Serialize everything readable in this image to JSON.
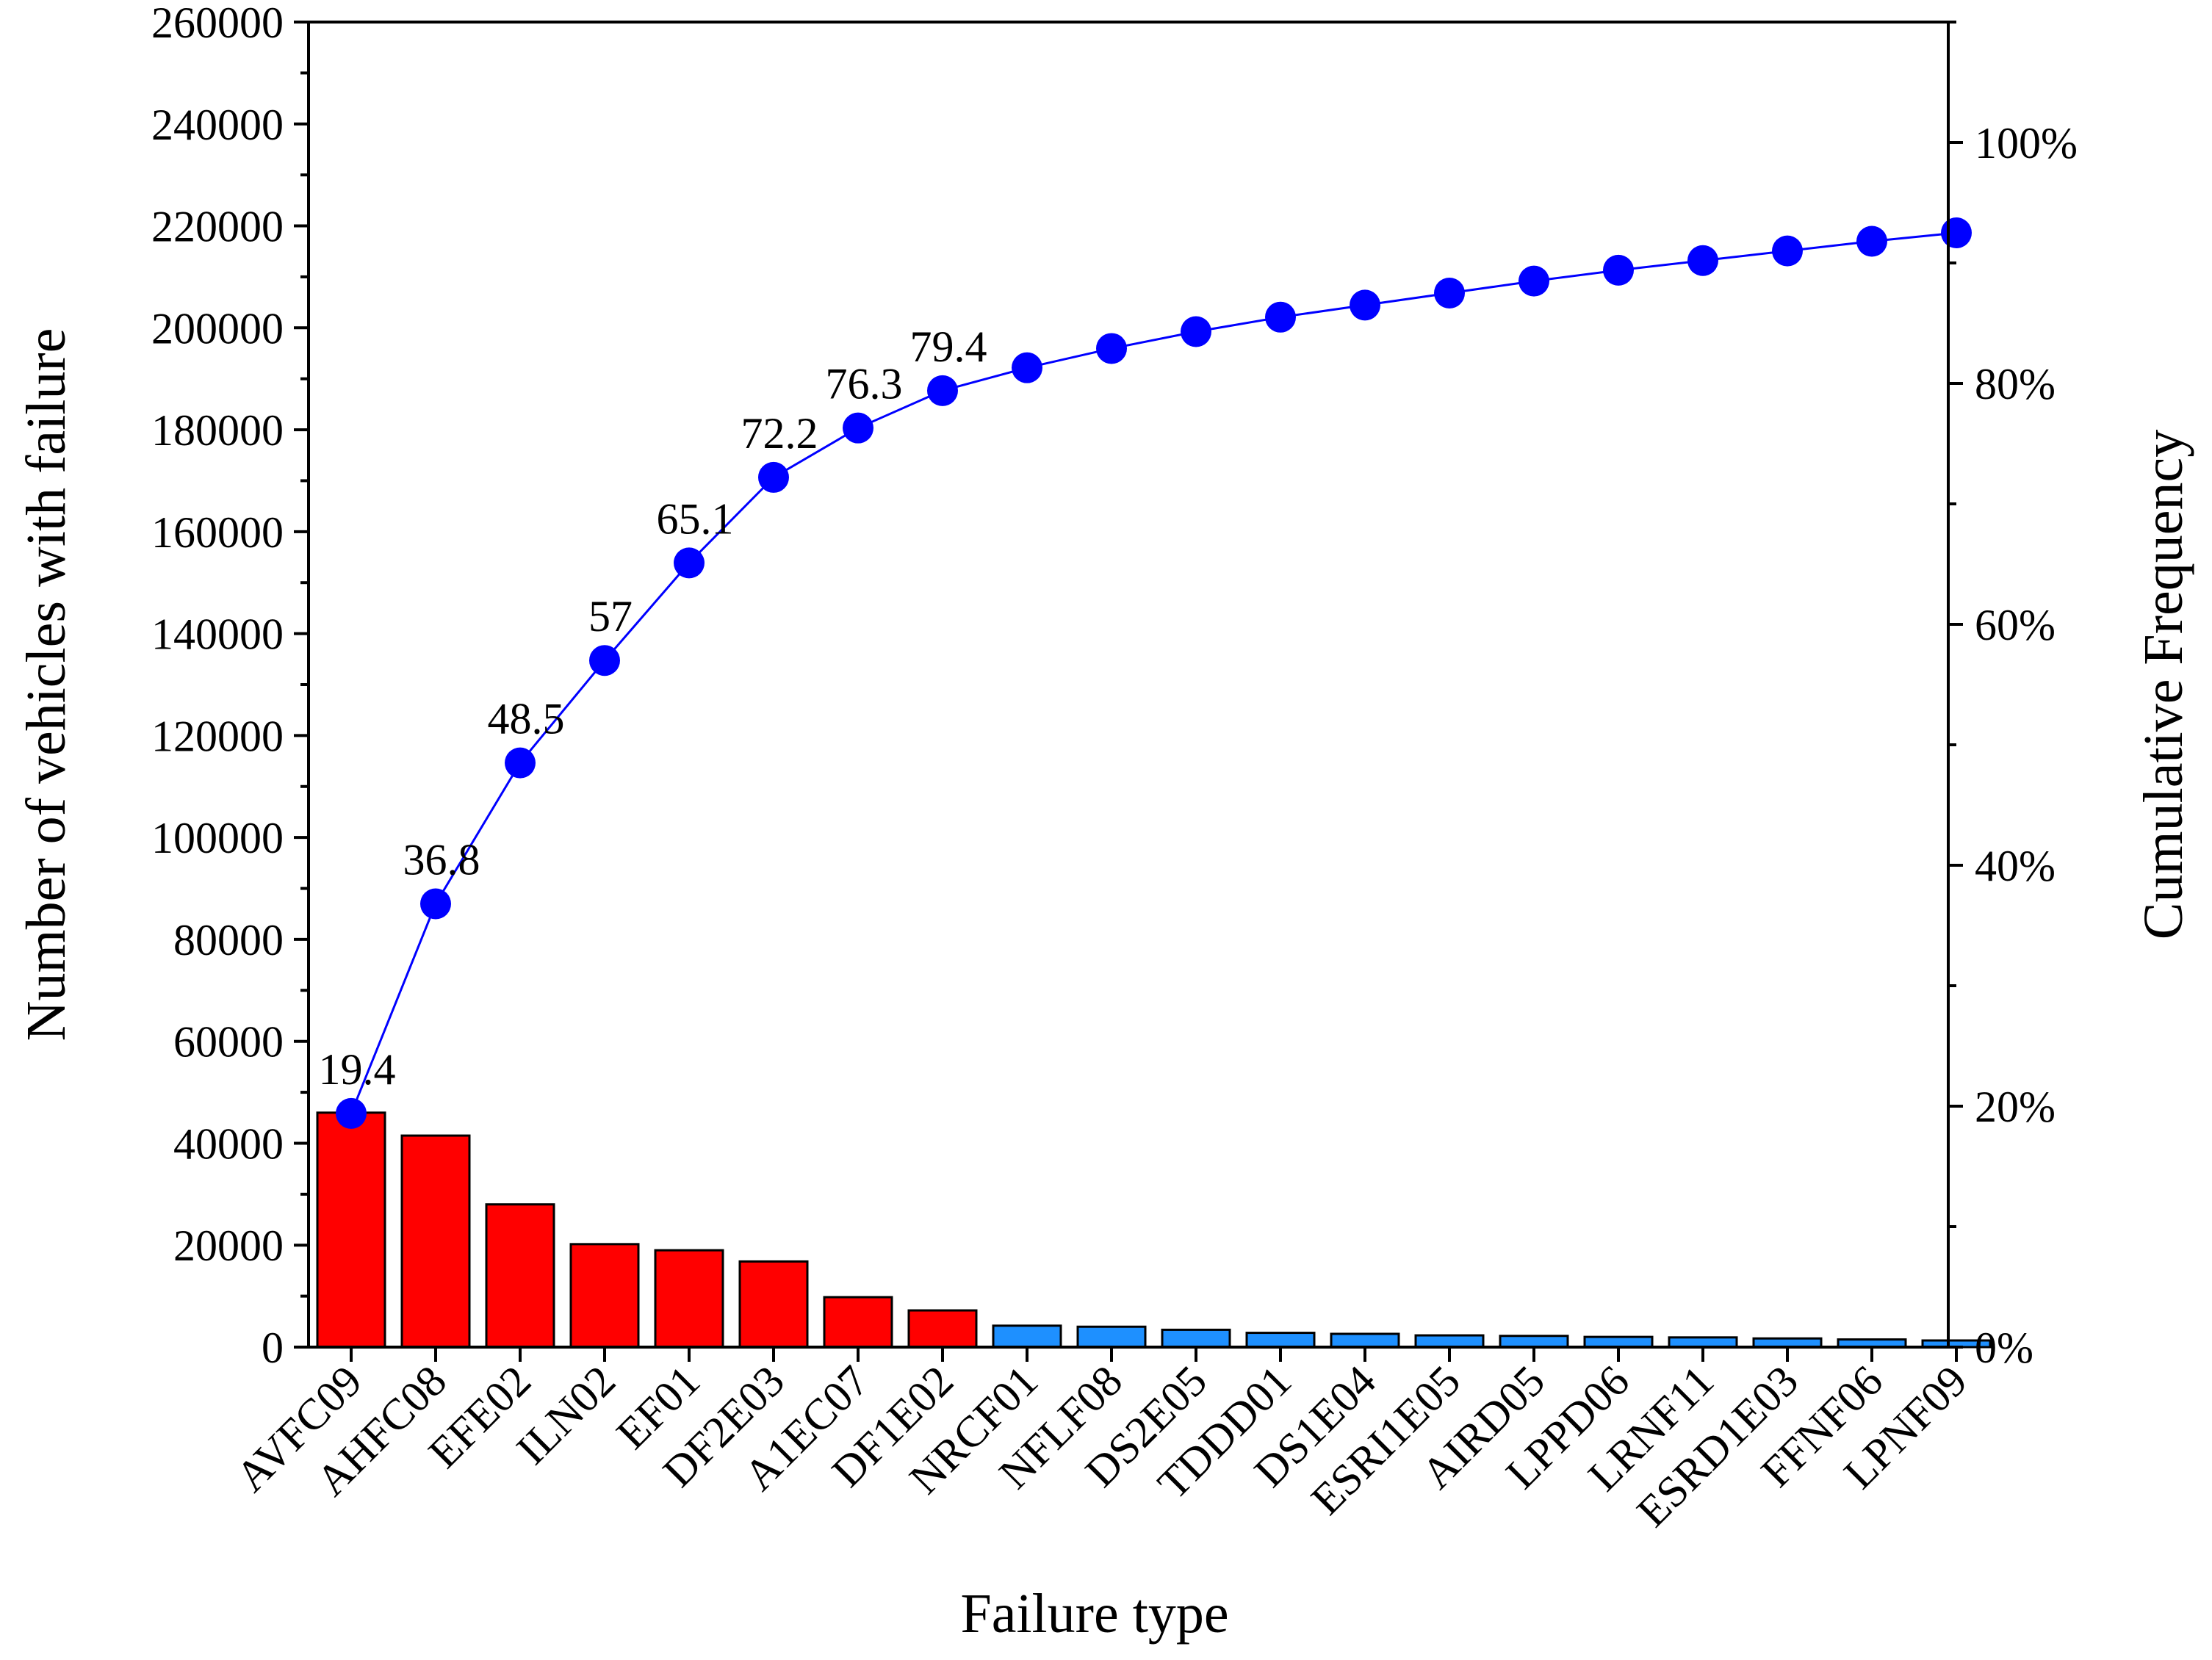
{
  "chart_data": {
    "type": "bar",
    "xlabel": "Failure type",
    "ylabel": "Number of vehicles with failure",
    "y2label": "Cumulative Frequency",
    "ylim": [
      0,
      260000
    ],
    "y_ticks": [
      0,
      20000,
      40000,
      60000,
      80000,
      100000,
      120000,
      140000,
      160000,
      180000,
      200000,
      220000,
      240000,
      260000
    ],
    "y2lim": [
      0,
      110
    ],
    "y2_ticks": [
      0,
      20,
      40,
      60,
      80,
      100
    ],
    "y2_tick_format": "%",
    "categories": [
      "AVFC09",
      "AHFC08",
      "EFE02",
      "ILN02",
      "EF01",
      "DF2E03",
      "A1EC07",
      "DF1E02",
      "NRCF01",
      "NFLF08",
      "DS2E05",
      "TDDD01",
      "DS1E04",
      "ESRI1E05",
      "AIRD05",
      "LPPD06",
      "LRNF11",
      "ESRD1E03",
      "FFNF06",
      "LPNF09"
    ],
    "series": [
      {
        "kind": "bar",
        "axis": "left",
        "values": [
          46000,
          41500,
          28000,
          20200,
          19000,
          16800,
          9800,
          7200,
          4200,
          4000,
          3400,
          2800,
          2600,
          2300,
          2200,
          2000,
          1900,
          1700,
          1500,
          1300
        ],
        "colors": [
          "#ff0000",
          "#ff0000",
          "#ff0000",
          "#ff0000",
          "#ff0000",
          "#ff0000",
          "#ff0000",
          "#ff0000",
          "#1e90ff",
          "#1e90ff",
          "#1e90ff",
          "#1e90ff",
          "#1e90ff",
          "#1e90ff",
          "#1e90ff",
          "#1e90ff",
          "#1e90ff",
          "#1e90ff",
          "#1e90ff",
          "#1e90ff"
        ]
      },
      {
        "kind": "line",
        "axis": "right",
        "color": "#0000ff",
        "values": [
          19.4,
          36.8,
          48.5,
          57,
          65.1,
          72.2,
          76.3,
          79.4,
          81.3,
          82.9,
          84.3,
          85.5,
          86.5,
          87.5,
          88.5,
          89.4,
          90.2,
          91.0,
          91.8,
          92.5
        ],
        "labels": [
          "19.4",
          "36.8",
          "48.5",
          "57",
          "65.1",
          "72.2",
          "76.3",
          "79.4"
        ]
      }
    ],
    "grid": false,
    "legend": "none"
  }
}
